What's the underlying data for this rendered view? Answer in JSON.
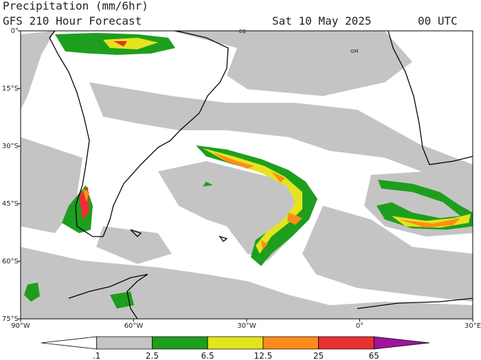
{
  "header": {
    "title": "Precipitation (mm/6hr)",
    "subtitle": "GFS 210 Hour Forecast",
    "date": "Sat 10 May 2025",
    "time": "00 UTC"
  },
  "map": {
    "lat_labels": [
      "0°",
      "15°S",
      "30°S",
      "45°S",
      "60°S",
      "75°S"
    ],
    "lon_labels": [
      "90°W",
      "60°W",
      "30°W",
      "0°",
      "30°E"
    ],
    "place_labels": [
      "EQ",
      "GM"
    ]
  },
  "colorbar": {
    "labels": [
      ".1",
      "2.5",
      "6.5",
      "12.5",
      "25",
      "65"
    ],
    "colors": [
      "#ffffff",
      "#c4c4c4",
      "#1e9e1e",
      "#e4e41e",
      "#ff8c1a",
      "#e83232",
      "#a0149c"
    ]
  }
}
